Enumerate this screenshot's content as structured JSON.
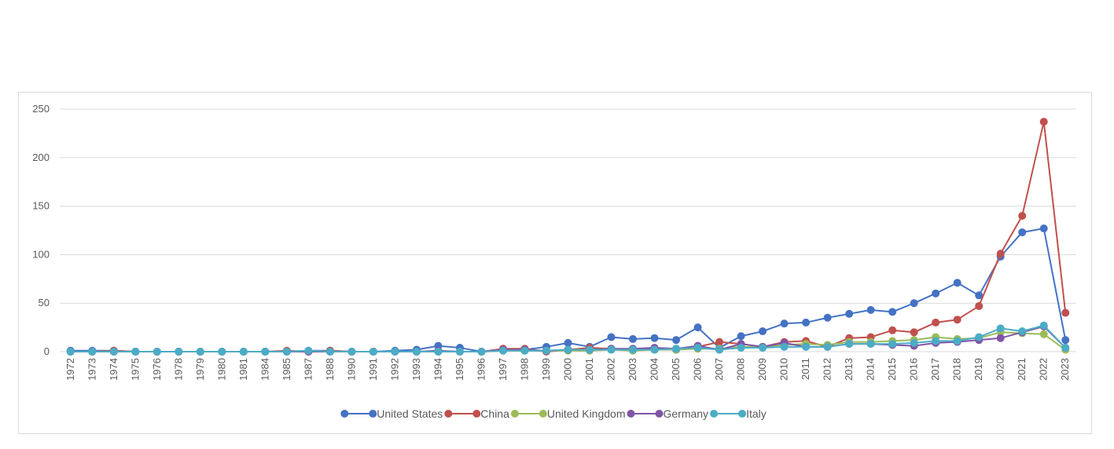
{
  "chart_data": {
    "type": "line",
    "title": "",
    "xlabel": "",
    "ylabel": "",
    "ylim": [
      0,
      250
    ],
    "yticks": [
      0,
      50,
      100,
      150,
      200,
      250
    ],
    "grid": "horizontal",
    "legend_position": "bottom",
    "categories": [
      "1972",
      "1973",
      "1974",
      "1975",
      "1976",
      "1978",
      "1979",
      "1980",
      "1981",
      "1984",
      "1985",
      "1987",
      "1988",
      "1990",
      "1991",
      "1992",
      "1993",
      "1994",
      "1995",
      "1996",
      "1997",
      "1998",
      "1999",
      "2000",
      "2001",
      "2002",
      "2003",
      "2004",
      "2005",
      "2006",
      "2007",
      "2008",
      "2009",
      "2010",
      "2011",
      "2012",
      "2013",
      "2014",
      "2015",
      "2016",
      "2017",
      "2018",
      "2019",
      "2020",
      "2021",
      "2022",
      "2023"
    ],
    "series": [
      {
        "name": "United States",
        "color": "#4472C4",
        "values": [
          1,
          1,
          1,
          0,
          0,
          0,
          0,
          0,
          0,
          0,
          0,
          1,
          1,
          0,
          0,
          1,
          2,
          6,
          4,
          0,
          2,
          2,
          5,
          9,
          5,
          15,
          13,
          14,
          12,
          25,
          4,
          16,
          21,
          29,
          30,
          35,
          39,
          43,
          41,
          50,
          60,
          71,
          58,
          98,
          123,
          127,
          12
        ]
      },
      {
        "name": "China",
        "color": "#C0504D",
        "values": [
          0,
          0,
          1,
          0,
          0,
          0,
          0,
          0,
          0,
          0,
          1,
          0,
          1,
          0,
          0,
          0,
          0,
          0,
          0,
          0,
          3,
          3,
          0,
          2,
          4,
          3,
          2,
          3,
          2,
          5,
          10,
          8,
          5,
          10,
          11,
          5,
          14,
          15,
          22,
          20,
          30,
          33,
          47,
          101,
          140,
          237,
          40
        ]
      },
      {
        "name": "United Kingdom",
        "color": "#9BBB59",
        "values": [
          0,
          0,
          0,
          0,
          0,
          0,
          0,
          0,
          0,
          0,
          0,
          0,
          0,
          0,
          0,
          0,
          0,
          0,
          0,
          0,
          1,
          1,
          1,
          1,
          1,
          2,
          1,
          2,
          2,
          3,
          3,
          5,
          5,
          7,
          8,
          7,
          10,
          10,
          11,
          12,
          15,
          13,
          14,
          20,
          19,
          18,
          2
        ]
      },
      {
        "name": "Germany",
        "color": "#7F55A8",
        "values": [
          0,
          0,
          0,
          0,
          0,
          0,
          0,
          0,
          0,
          0,
          0,
          0,
          0,
          0,
          0,
          0,
          0,
          1,
          0,
          0,
          2,
          2,
          1,
          2,
          2,
          3,
          3,
          4,
          3,
          6,
          2,
          8,
          5,
          9,
          5,
          5,
          8,
          8,
          7,
          6,
          9,
          10,
          12,
          14,
          20,
          26,
          4
        ]
      },
      {
        "name": "Italy",
        "color": "#4BACC6",
        "values": [
          0,
          0,
          0,
          0,
          0,
          0,
          0,
          0,
          0,
          0,
          0,
          1,
          0,
          0,
          0,
          0,
          0,
          0,
          0,
          0,
          1,
          1,
          1,
          2,
          2,
          2,
          2,
          2,
          3,
          4,
          2,
          4,
          4,
          5,
          5,
          5,
          8,
          8,
          8,
          9,
          11,
          11,
          15,
          24,
          21,
          27,
          4
        ]
      }
    ]
  }
}
